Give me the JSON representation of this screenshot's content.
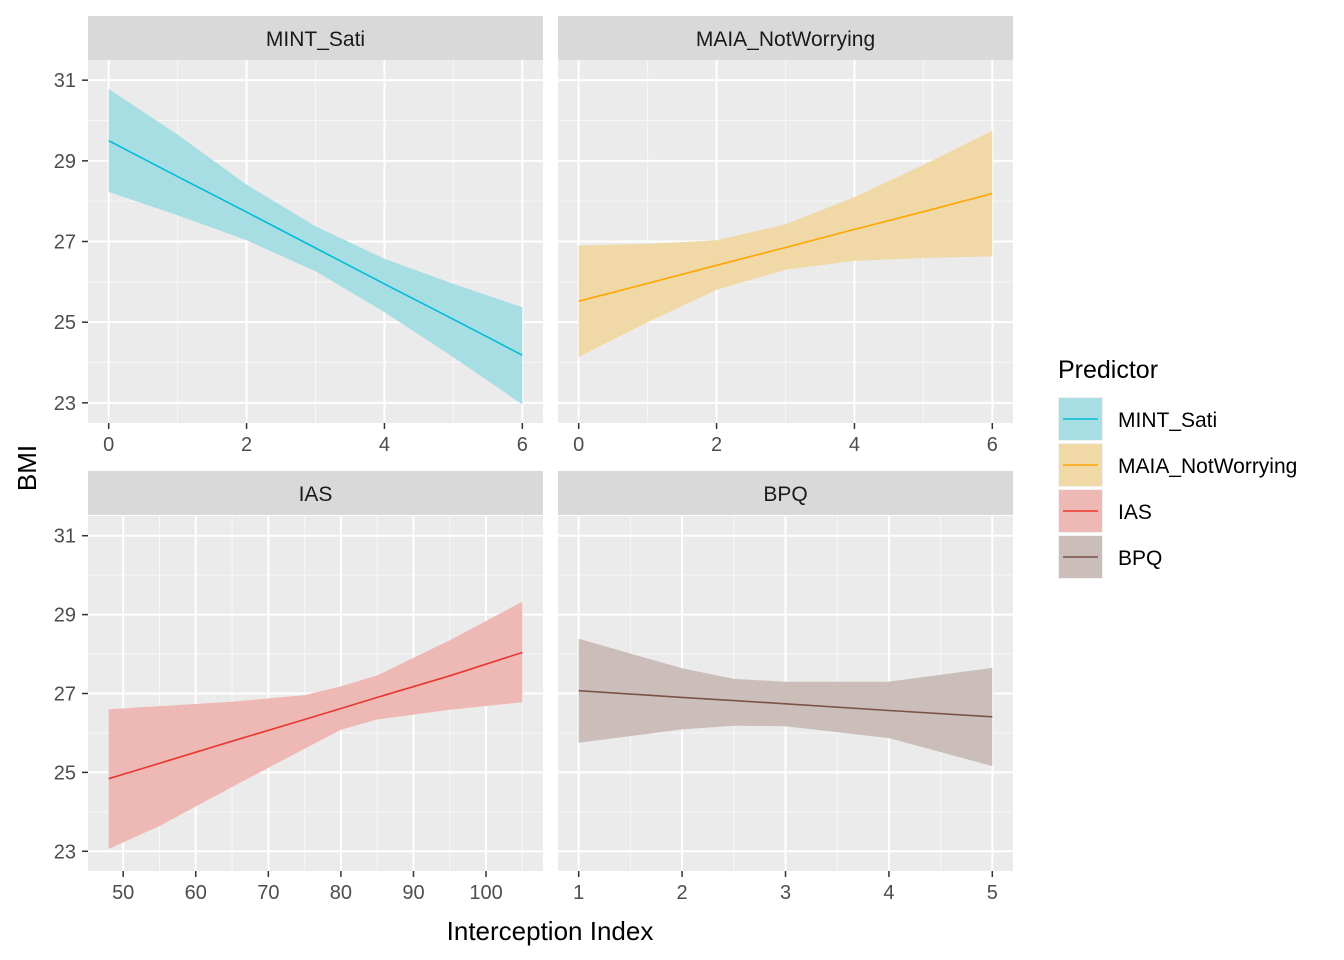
{
  "chart_data": {
    "type": "line",
    "xlabel": "Interception Index",
    "ylabel": "BMI",
    "legend": {
      "title": "Predictor",
      "position": "right",
      "items": [
        {
          "label": "MINT_Sati",
          "color": "#00BCD8",
          "fill": "#A6DEE4"
        },
        {
          "label": "MAIA_NotWorrying",
          "color": "#FFA500",
          "fill": "#F0D9A6"
        },
        {
          "label": "IAS",
          "color": "#E8382F",
          "fill": "#EEB8B5"
        },
        {
          "label": "BPQ",
          "color": "#7B5246",
          "fill": "#CBBEBA"
        }
      ]
    },
    "panels": [
      {
        "title": "MINT_Sati",
        "color": "#00BCD8",
        "fill": "#A6DEE4",
        "xlim": [
          -0.3,
          6.3
        ],
        "xticks": [
          0,
          2,
          4,
          6
        ],
        "xtick_labels": [
          "0",
          "2",
          "4",
          "6"
        ],
        "xticks_minor": [
          1,
          3,
          5
        ],
        "ylim": [
          22.5,
          31.5
        ],
        "yticks": [
          23,
          25,
          27,
          29,
          31
        ],
        "ytick_labels": [
          "23",
          "25",
          "27",
          "29",
          "31"
        ],
        "yticks_minor": [
          24,
          26,
          28,
          30
        ],
        "x": [
          0,
          1,
          2,
          3,
          4,
          5,
          6
        ],
        "y": [
          29.5,
          28.61,
          27.73,
          26.84,
          25.95,
          25.07,
          24.18
        ],
        "lower": [
          28.23,
          27.65,
          27.03,
          26.26,
          25.25,
          24.13,
          22.96
        ],
        "upper": [
          30.78,
          29.65,
          28.41,
          27.38,
          26.57,
          25.95,
          25.37
        ],
        "show_y_axis": true,
        "show_x_labels": true
      },
      {
        "title": "MAIA_NotWorrying",
        "color": "#FFA500",
        "fill": "#F0D9A6",
        "xlim": [
          -0.3,
          6.3
        ],
        "xticks": [
          0,
          2,
          4,
          6
        ],
        "xtick_labels": [
          "0",
          "2",
          "4",
          "6"
        ],
        "xticks_minor": [
          1,
          3,
          5
        ],
        "ylim": [
          22.5,
          31.5
        ],
        "yticks": [
          23,
          25,
          27,
          29,
          31
        ],
        "ytick_labels": [
          "23",
          "25",
          "27",
          "29",
          "31"
        ],
        "yticks_minor": [
          24,
          26,
          28,
          30
        ],
        "x": [
          0,
          1,
          2,
          3,
          4,
          5,
          6
        ],
        "y": [
          25.52,
          25.96,
          26.41,
          26.85,
          27.3,
          27.74,
          28.19
        ],
        "lower": [
          24.14,
          25.0,
          25.8,
          26.3,
          26.52,
          26.59,
          26.63
        ],
        "upper": [
          26.9,
          26.94,
          27.03,
          27.43,
          28.1,
          28.9,
          29.75
        ],
        "show_y_axis": false,
        "show_x_labels": true
      },
      {
        "title": "IAS",
        "color": "#E8382F",
        "fill": "#EEB8B5",
        "xlim": [
          45.15,
          107.85
        ],
        "xticks": [
          50,
          60,
          70,
          80,
          90,
          100
        ],
        "xtick_labels": [
          "50",
          "60",
          "70",
          "80",
          "90",
          "100"
        ],
        "xticks_minor": [
          55,
          65,
          75,
          85,
          95,
          105
        ],
        "ylim": [
          22.5,
          31.5
        ],
        "yticks": [
          23,
          25,
          27,
          29,
          31
        ],
        "ytick_labels": [
          "23",
          "25",
          "27",
          "29",
          "31"
        ],
        "yticks_minor": [
          24,
          26,
          28,
          30
        ],
        "x": [
          48,
          55,
          65,
          75,
          80,
          85,
          95,
          105
        ],
        "y": [
          24.84,
          25.23,
          25.79,
          26.34,
          26.62,
          26.9,
          27.45,
          28.04
        ],
        "lower": [
          23.06,
          23.64,
          24.63,
          25.6,
          26.08,
          26.34,
          26.59,
          26.78
        ],
        "upper": [
          26.6,
          26.68,
          26.79,
          26.96,
          27.18,
          27.46,
          28.35,
          29.33
        ],
        "show_y_axis": true,
        "show_x_labels": true
      },
      {
        "title": "BPQ",
        "color": "#7B5246",
        "fill": "#CBBEBA",
        "xlim": [
          0.8,
          5.2
        ],
        "xticks": [
          1,
          2,
          3,
          4,
          5
        ],
        "xtick_labels": [
          "1",
          "2",
          "3",
          "4",
          "5"
        ],
        "xticks_minor": [
          1.5,
          2.5,
          3.5,
          4.5
        ],
        "ylim": [
          22.5,
          31.5
        ],
        "yticks": [
          23,
          25,
          27,
          29,
          31
        ],
        "ytick_labels": [
          "23",
          "25",
          "27",
          "29",
          "31"
        ],
        "yticks_minor": [
          24,
          26,
          28,
          30
        ],
        "x": [
          1,
          2,
          2.5,
          3,
          4,
          5
        ],
        "y": [
          27.07,
          26.9,
          26.82,
          26.74,
          26.57,
          26.41
        ],
        "lower": [
          25.75,
          26.09,
          26.18,
          26.17,
          25.87,
          25.16
        ],
        "upper": [
          28.39,
          27.64,
          27.37,
          27.3,
          27.3,
          27.65
        ],
        "show_y_axis": false,
        "show_x_labels": true
      }
    ]
  }
}
